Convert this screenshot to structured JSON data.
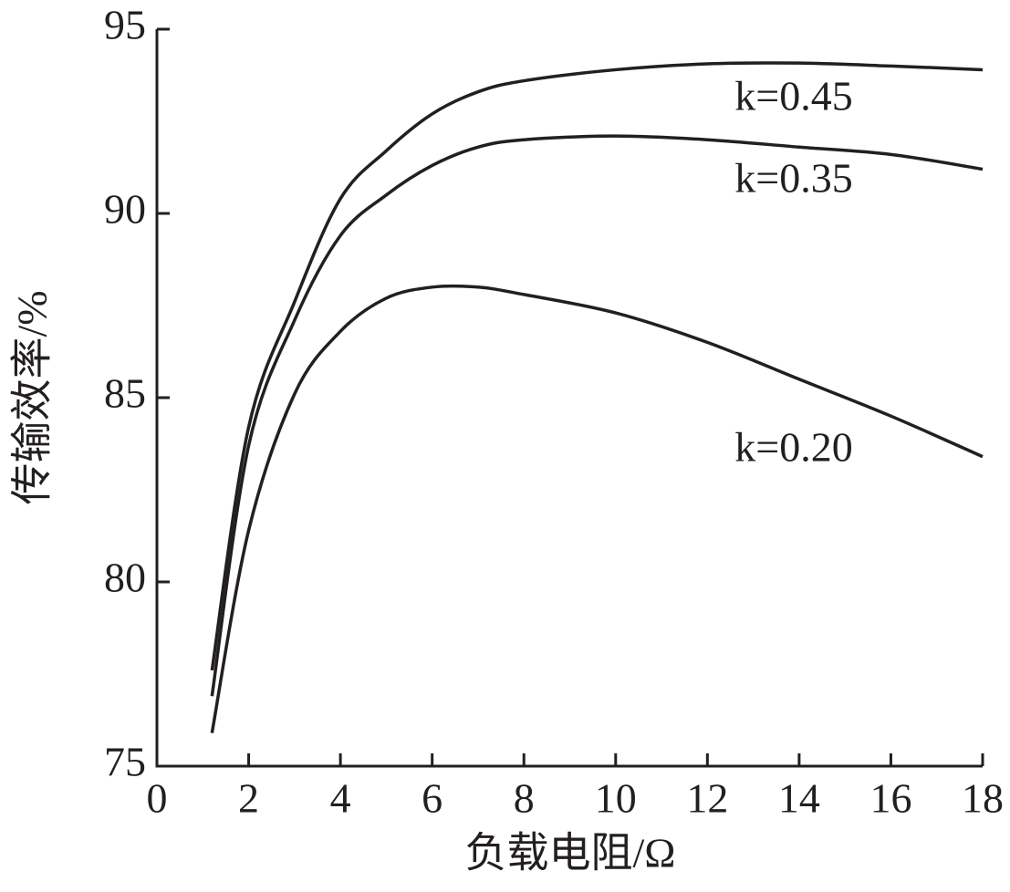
{
  "chart_data": {
    "type": "line",
    "x_label": "负载电阻/Ω",
    "y_label": "传输效率/%",
    "x": [
      1.2,
      2,
      3,
      4,
      5,
      6,
      7,
      8,
      10,
      12,
      14,
      16,
      18
    ],
    "series": [
      {
        "name": "k=0.45",
        "color": "#231f20",
        "values": [
          77.6,
          84.2,
          87.6,
          90.4,
          91.7,
          92.7,
          93.3,
          93.6,
          93.9,
          94.06,
          94.08,
          94.0,
          93.9
        ]
      },
      {
        "name": "k=0.35",
        "color": "#231f20",
        "values": [
          76.9,
          83.7,
          87.1,
          89.4,
          90.5,
          91.3,
          91.8,
          92.0,
          92.1,
          92.0,
          91.8,
          91.6,
          91.2
        ]
      },
      {
        "name": "k=0.20",
        "color": "#231f20",
        "values": [
          75.9,
          81.4,
          85.1,
          86.8,
          87.7,
          88.0,
          88.0,
          87.8,
          87.3,
          86.5,
          85.5,
          84.5,
          83.4
        ]
      }
    ],
    "xlim": [
      0,
      18
    ],
    "xticks": [
      0,
      2,
      4,
      6,
      8,
      10,
      12,
      14,
      16,
      18
    ],
    "ylim": [
      75,
      95
    ],
    "yticks": [
      75,
      80,
      85,
      90,
      95
    ]
  }
}
